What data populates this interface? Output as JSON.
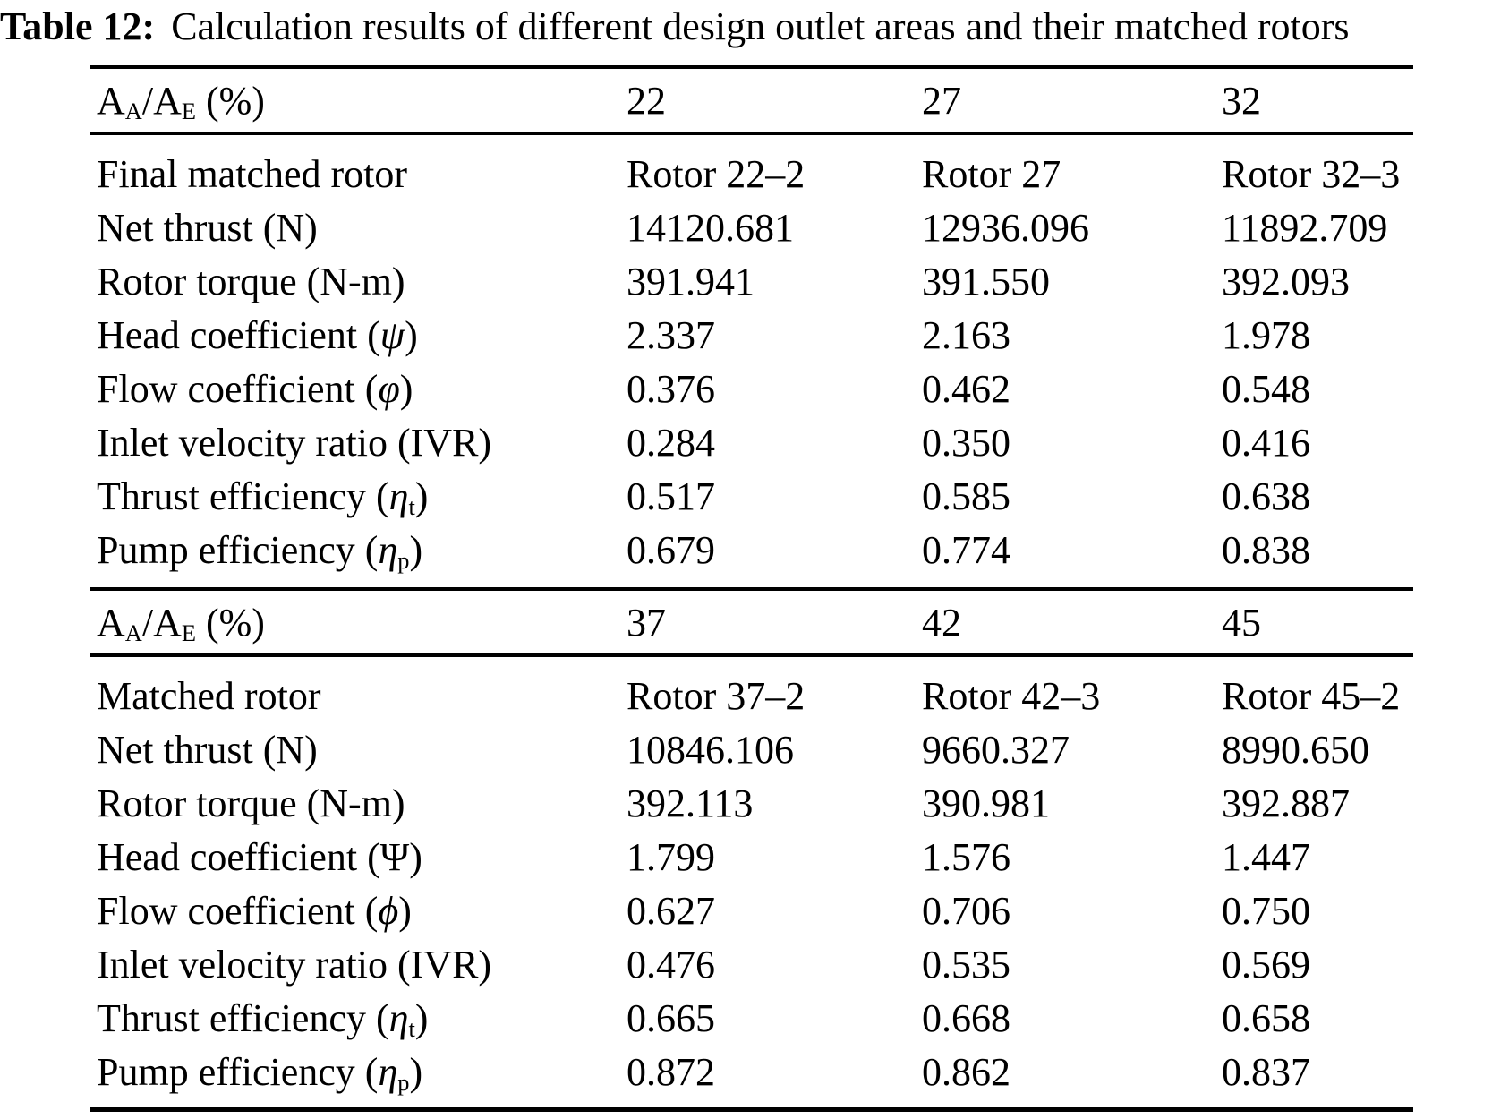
{
  "caption": {
    "number": "Table 12:",
    "text": "Calculation results of different design outlet areas and their matched rotors"
  },
  "colors": {
    "text": "#000000",
    "background": "#ffffff",
    "rule": "#000000"
  },
  "table": {
    "sections": [
      {
        "header": {
          "label_html": "A<sub>A</sub>/A<sub>E</sub> (%)",
          "label_text": "AA/AE (%)",
          "values": [
            "22",
            "27",
            "32"
          ]
        },
        "rows": [
          {
            "label_html": "Final matched rotor",
            "label_text": "Final matched rotor",
            "values": [
              "Rotor 22–2",
              "Rotor 27",
              "Rotor 32–3"
            ]
          },
          {
            "label_html": "Net thrust (N)",
            "label_text": "Net thrust (N)",
            "values": [
              "14120.681",
              "12936.096",
              "11892.709"
            ]
          },
          {
            "label_html": "Rotor torque (N-m)",
            "label_text": "Rotor torque (N-m)",
            "values": [
              "391.941",
              "391.550",
              "392.093"
            ]
          },
          {
            "label_html": "Head coefficient (<i>ψ</i>)",
            "label_text": "Head coefficient (ψ)",
            "values": [
              "2.337",
              "2.163",
              "1.978"
            ]
          },
          {
            "label_html": "Flow coefficient (<i>φ</i>)",
            "label_text": "Flow coefficient (φ)",
            "values": [
              "0.376",
              "0.462",
              "0.548"
            ]
          },
          {
            "label_html": "Inlet velocity ratio (IVR)",
            "label_text": "Inlet velocity ratio (IVR)",
            "values": [
              "0.284",
              "0.350",
              "0.416"
            ]
          },
          {
            "label_html": "Thrust efficiency (<i>η</i><sub>t</sub>)",
            "label_text": "Thrust efficiency (ηt)",
            "values": [
              "0.517",
              "0.585",
              "0.638"
            ]
          },
          {
            "label_html": "Pump efficiency (<i>η</i><sub>p</sub>)",
            "label_text": "Pump efficiency (ηp)",
            "values": [
              "0.679",
              "0.774",
              "0.838"
            ]
          }
        ]
      },
      {
        "header": {
          "label_html": "A<sub>A</sub>/A<sub>E</sub> (%)",
          "label_text": "AA/AE (%)",
          "values": [
            "37",
            "42",
            "45"
          ]
        },
        "rows": [
          {
            "label_html": "Matched rotor",
            "label_text": "Matched rotor",
            "values": [
              "Rotor 37–2",
              "Rotor 42–3",
              "Rotor 45–2"
            ]
          },
          {
            "label_html": "Net thrust (N)",
            "label_text": "Net thrust (N)",
            "values": [
              "10846.106",
              "9660.327",
              "8990.650"
            ]
          },
          {
            "label_html": "Rotor torque (N-m)",
            "label_text": "Rotor torque (N-m)",
            "values": [
              "392.113",
              "390.981",
              "392.887"
            ]
          },
          {
            "label_html": "Head coefficient (Ψ)",
            "label_text": "Head coefficient (Ψ)",
            "values": [
              "1.799",
              "1.576",
              "1.447"
            ]
          },
          {
            "label_html": "Flow coefficient (<i>ϕ</i>)",
            "label_text": "Flow coefficient (ϕ)",
            "values": [
              "0.627",
              "0.706",
              "0.750"
            ]
          },
          {
            "label_html": "Inlet velocity ratio (IVR)",
            "label_text": "Inlet velocity ratio (IVR)",
            "values": [
              "0.476",
              "0.535",
              "0.569"
            ]
          },
          {
            "label_html": "Thrust efficiency (<i>η</i><sub>t</sub>)",
            "label_text": "Thrust efficiency (ηt)",
            "values": [
              "0.665",
              "0.668",
              "0.658"
            ]
          },
          {
            "label_html": "Pump efficiency (<i>η</i><sub>p</sub>)",
            "label_text": "Pump efficiency (ηp)",
            "values": [
              "0.872",
              "0.862",
              "0.837"
            ]
          }
        ]
      }
    ]
  }
}
